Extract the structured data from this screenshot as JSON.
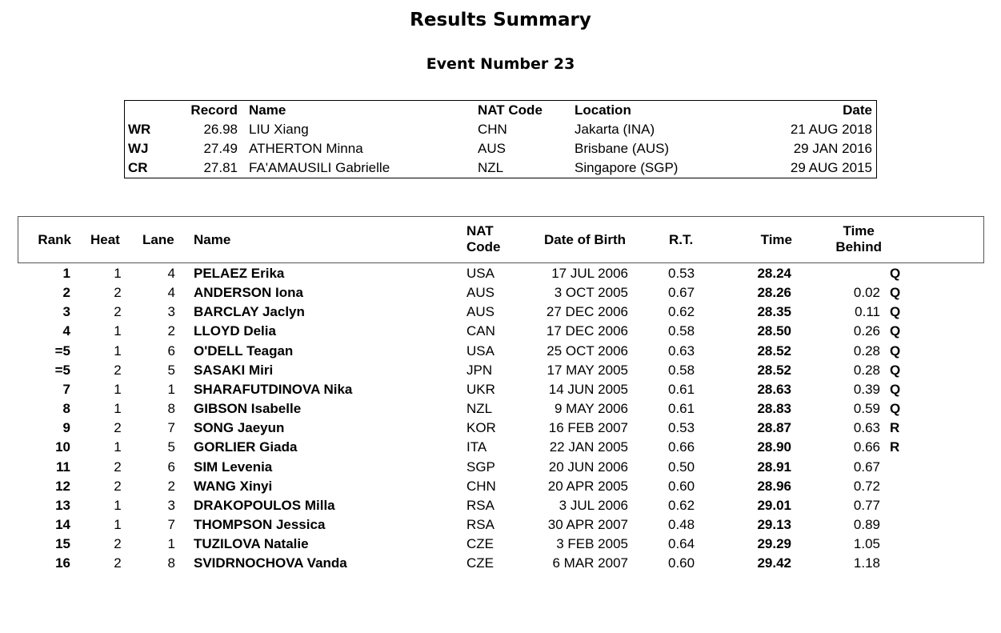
{
  "title": "Results Summary",
  "event": "Event Number 23",
  "records": {
    "headers": {
      "record": "Record",
      "name": "Name",
      "nat": "NAT Code",
      "location": "Location",
      "date": "Date"
    },
    "rows": [
      {
        "code": "WR",
        "record": "26.98",
        "name": "LIU Xiang",
        "nat": "CHN",
        "location": "Jakarta (INA)",
        "date": "21 AUG 2018"
      },
      {
        "code": "WJ",
        "record": "27.49",
        "name": "ATHERTON Minna",
        "nat": "AUS",
        "location": "Brisbane (AUS)",
        "date": "29 JAN 2016"
      },
      {
        "code": "CR",
        "record": "27.81",
        "name": "FA'AMAUSILI Gabrielle",
        "nat": "NZL",
        "location": "Singapore (SGP)",
        "date": "29 AUG 2015"
      }
    ]
  },
  "results": {
    "headers": {
      "rank": "Rank",
      "heat": "Heat",
      "lane": "Lane",
      "name": "Name",
      "nat1": "NAT",
      "nat2": "Code",
      "dob": "Date of Birth",
      "rt": "R.T.",
      "time": "Time",
      "behind1": "Time",
      "behind2": "Behind"
    },
    "rows": [
      {
        "rank": "1",
        "heat": "1",
        "lane": "4",
        "name": "PELAEZ Erika",
        "nat": "USA",
        "dob": "17 JUL 2006",
        "rt": "0.53",
        "time": "28.24",
        "behind": "",
        "q": "Q"
      },
      {
        "rank": "2",
        "heat": "2",
        "lane": "4",
        "name": "ANDERSON Iona",
        "nat": "AUS",
        "dob": "3 OCT 2005",
        "rt": "0.67",
        "time": "28.26",
        "behind": "0.02",
        "q": "Q"
      },
      {
        "rank": "3",
        "heat": "2",
        "lane": "3",
        "name": "BARCLAY Jaclyn",
        "nat": "AUS",
        "dob": "27 DEC 2006",
        "rt": "0.62",
        "time": "28.35",
        "behind": "0.11",
        "q": "Q"
      },
      {
        "rank": "4",
        "heat": "1",
        "lane": "2",
        "name": "LLOYD Delia",
        "nat": "CAN",
        "dob": "17 DEC 2006",
        "rt": "0.58",
        "time": "28.50",
        "behind": "0.26",
        "q": "Q"
      },
      {
        "rank": "=5",
        "heat": "1",
        "lane": "6",
        "name": "O'DELL Teagan",
        "nat": "USA",
        "dob": "25 OCT 2006",
        "rt": "0.63",
        "time": "28.52",
        "behind": "0.28",
        "q": "Q"
      },
      {
        "rank": "=5",
        "heat": "2",
        "lane": "5",
        "name": "SASAKI Miri",
        "nat": "JPN",
        "dob": "17 MAY 2005",
        "rt": "0.58",
        "time": "28.52",
        "behind": "0.28",
        "q": "Q"
      },
      {
        "rank": "7",
        "heat": "1",
        "lane": "1",
        "name": "SHARAFUTDINOVA Nika",
        "nat": "UKR",
        "dob": "14 JUN 2005",
        "rt": "0.61",
        "time": "28.63",
        "behind": "0.39",
        "q": "Q"
      },
      {
        "rank": "8",
        "heat": "1",
        "lane": "8",
        "name": "GIBSON Isabelle",
        "nat": "NZL",
        "dob": "9 MAY 2006",
        "rt": "0.61",
        "time": "28.83",
        "behind": "0.59",
        "q": "Q"
      },
      {
        "rank": "9",
        "heat": "2",
        "lane": "7",
        "name": "SONG Jaeyun",
        "nat": "KOR",
        "dob": "16 FEB 2007",
        "rt": "0.53",
        "time": "28.87",
        "behind": "0.63",
        "q": "R"
      },
      {
        "rank": "10",
        "heat": "1",
        "lane": "5",
        "name": "GORLIER Giada",
        "nat": "ITA",
        "dob": "22 JAN 2005",
        "rt": "0.66",
        "time": "28.90",
        "behind": "0.66",
        "q": "R"
      },
      {
        "rank": "11",
        "heat": "2",
        "lane": "6",
        "name": "SIM Levenia",
        "nat": "SGP",
        "dob": "20 JUN 2006",
        "rt": "0.50",
        "time": "28.91",
        "behind": "0.67",
        "q": ""
      },
      {
        "rank": "12",
        "heat": "2",
        "lane": "2",
        "name": "WANG Xinyi",
        "nat": "CHN",
        "dob": "20 APR 2005",
        "rt": "0.60",
        "time": "28.96",
        "behind": "0.72",
        "q": ""
      },
      {
        "rank": "13",
        "heat": "1",
        "lane": "3",
        "name": "DRAKOPOULOS Milla",
        "nat": "RSA",
        "dob": "3 JUL 2006",
        "rt": "0.62",
        "time": "29.01",
        "behind": "0.77",
        "q": ""
      },
      {
        "rank": "14",
        "heat": "1",
        "lane": "7",
        "name": "THOMPSON Jessica",
        "nat": "RSA",
        "dob": "30 APR 2007",
        "rt": "0.48",
        "time": "29.13",
        "behind": "0.89",
        "q": ""
      },
      {
        "rank": "15",
        "heat": "2",
        "lane": "1",
        "name": "TUZILOVA Natalie",
        "nat": "CZE",
        "dob": "3 FEB 2005",
        "rt": "0.64",
        "time": "29.29",
        "behind": "1.05",
        "q": ""
      },
      {
        "rank": "16",
        "heat": "2",
        "lane": "8",
        "name": "SVIDRNOCHOVA Vanda",
        "nat": "CZE",
        "dob": "6 MAR 2007",
        "rt": "0.60",
        "time": "29.42",
        "behind": "1.18",
        "q": ""
      }
    ]
  }
}
